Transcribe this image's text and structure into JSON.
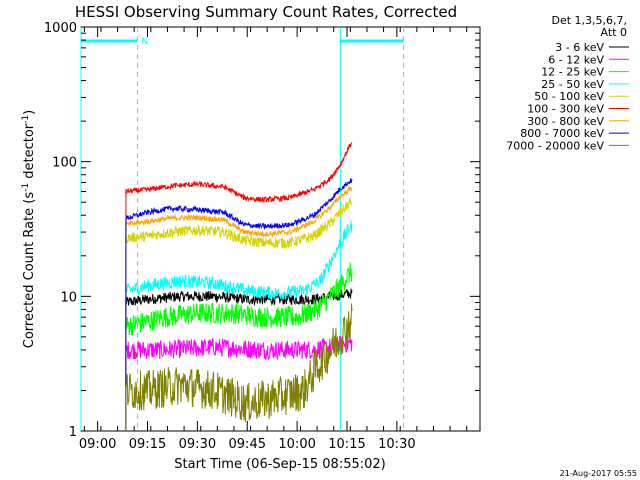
{
  "chart_data": {
    "type": "line",
    "title": "HESSI Observing Summary Count Rates, Corrected",
    "xlabel": "Start Time (06-Sep-15 08:55:02)",
    "ylabel": "Corrected Count Rate (s",
    "ylabel_sup1": "-1",
    "ylabel_mid": " detector",
    "ylabel_sup2": "-1",
    "ylabel_end": ")",
    "yscale": "log",
    "ylim": [
      1,
      1000
    ],
    "xlim_minutes": [
      55,
      175
    ],
    "x_unit": "minutes after 08:00 on 06-Sep-15",
    "x_ticks": [
      {
        "value": 60,
        "label": "09:00"
      },
      {
        "value": 75,
        "label": "09:15"
      },
      {
        "value": 90,
        "label": "09:30"
      },
      {
        "value": 105,
        "label": "09:45"
      },
      {
        "value": 120,
        "label": "10:00"
      },
      {
        "value": 135,
        "label": "10:15"
      },
      {
        "value": 150,
        "label": "10:30"
      }
    ],
    "y_ticks": [
      {
        "value": 1,
        "label": "1"
      },
      {
        "value": 10,
        "label": "10"
      },
      {
        "value": 100,
        "label": "100"
      },
      {
        "value": 1000,
        "label": "1000"
      }
    ],
    "legend_header": [
      "Det 1,3,5,6,7,",
      "Att 0"
    ],
    "legend_position": "right",
    "data_interval_minutes": [
      68.5,
      136.5
    ],
    "series": [
      {
        "name": "3 - 6 keV",
        "color": "#000000",
        "noise": 0.04,
        "points": [
          [
            68.5,
            9.0
          ],
          [
            75,
            9.5
          ],
          [
            85,
            10.0
          ],
          [
            95,
            10.0
          ],
          [
            105,
            9.5
          ],
          [
            115,
            9.5
          ],
          [
            125,
            9.5
          ],
          [
            130,
            10.0
          ],
          [
            136,
            10.5
          ]
        ]
      },
      {
        "name": "6 - 12 keV",
        "color": "#ff00ff",
        "noise": 0.07,
        "points": [
          [
            68.5,
            4.0
          ],
          [
            80,
            4.0
          ],
          [
            95,
            4.2
          ],
          [
            110,
            4.0
          ],
          [
            125,
            4.0
          ],
          [
            130,
            4.2
          ],
          [
            136,
            4.5
          ]
        ]
      },
      {
        "name": "12 - 25 keV",
        "color": "#00ff00",
        "noise": 0.08,
        "points": [
          [
            68.5,
            6.0
          ],
          [
            75,
            6.5
          ],
          [
            80,
            7.0
          ],
          [
            90,
            7.5
          ],
          [
            100,
            7.5
          ],
          [
            110,
            7.0
          ],
          [
            120,
            7.0
          ],
          [
            126,
            8.0
          ],
          [
            130,
            10.0
          ],
          [
            133,
            12.0
          ],
          [
            136,
            15.0
          ]
        ]
      },
      {
        "name": "25 - 50 keV",
        "color": "#00ffff",
        "noise": 0.05,
        "points": [
          [
            68.5,
            11.0
          ],
          [
            75,
            12.0
          ],
          [
            85,
            13.0
          ],
          [
            95,
            12.5
          ],
          [
            105,
            11.0
          ],
          [
            115,
            10.5
          ],
          [
            122,
            11.0
          ],
          [
            127,
            13.0
          ],
          [
            130,
            18.0
          ],
          [
            133,
            25.0
          ],
          [
            136,
            33.0
          ]
        ]
      },
      {
        "name": "50 - 100 keV",
        "color": "#d4d400",
        "noise": 0.04,
        "points": [
          [
            68.5,
            27.0
          ],
          [
            75,
            28.0
          ],
          [
            82,
            30.0
          ],
          [
            90,
            31.0
          ],
          [
            98,
            30.0
          ],
          [
            104,
            26.0
          ],
          [
            110,
            25.0
          ],
          [
            118,
            25.0
          ],
          [
            125,
            28.0
          ],
          [
            130,
            35.0
          ],
          [
            133,
            42.0
          ],
          [
            136,
            50.0
          ]
        ]
      },
      {
        "name": "100 - 300 keV",
        "color": "#ff0000",
        "noise": 0.02,
        "points": [
          [
            68.5,
            60.0
          ],
          [
            75,
            62.0
          ],
          [
            82,
            66.0
          ],
          [
            90,
            68.0
          ],
          [
            98,
            65.0
          ],
          [
            104,
            54.0
          ],
          [
            110,
            52.0
          ],
          [
            118,
            54.0
          ],
          [
            125,
            62.0
          ],
          [
            130,
            75.0
          ],
          [
            133,
            95.0
          ],
          [
            136,
            135.0
          ]
        ]
      },
      {
        "name": "300 - 800 keV",
        "color": "#ffa500",
        "noise": 0.02,
        "points": [
          [
            68.5,
            34.0
          ],
          [
            75,
            36.0
          ],
          [
            82,
            38.0
          ],
          [
            90,
            38.5
          ],
          [
            98,
            37.0
          ],
          [
            104,
            30.0
          ],
          [
            110,
            29.0
          ],
          [
            118,
            30.0
          ],
          [
            125,
            36.0
          ],
          [
            130,
            46.0
          ],
          [
            133,
            55.0
          ],
          [
            136,
            63.0
          ]
        ]
      },
      {
        "name": "800 - 7000 keV",
        "color": "#0000ff",
        "noise": 0.02,
        "points": [
          [
            68.5,
            38.0
          ],
          [
            75,
            42.0
          ],
          [
            82,
            45.0
          ],
          [
            90,
            44.0
          ],
          [
            98,
            42.0
          ],
          [
            104,
            34.0
          ],
          [
            110,
            33.0
          ],
          [
            118,
            34.0
          ],
          [
            125,
            40.0
          ],
          [
            130,
            52.0
          ],
          [
            133,
            63.0
          ],
          [
            136,
            72.0
          ]
        ]
      },
      {
        "name": "7000 - 20000 keV",
        "color": "#808000",
        "noise": 0.15,
        "points": [
          [
            68.5,
            2.0
          ],
          [
            75,
            2.0
          ],
          [
            85,
            2.2
          ],
          [
            95,
            2.0
          ],
          [
            105,
            1.6
          ],
          [
            115,
            1.8
          ],
          [
            122,
            2.0
          ],
          [
            126,
            3.0
          ],
          [
            130,
            4.0
          ],
          [
            133,
            5.0
          ],
          [
            136,
            6.5
          ]
        ]
      }
    ],
    "night_markers": [
      {
        "type": "night",
        "x_start": 55,
        "x_end": 72,
        "label": "N",
        "color": "#00ffff"
      },
      {
        "type": "night",
        "x_start": 133,
        "x_end": 152,
        "label": "",
        "color": "#00ffff"
      }
    ],
    "timestamp": "21-Aug-2017 05:55"
  }
}
